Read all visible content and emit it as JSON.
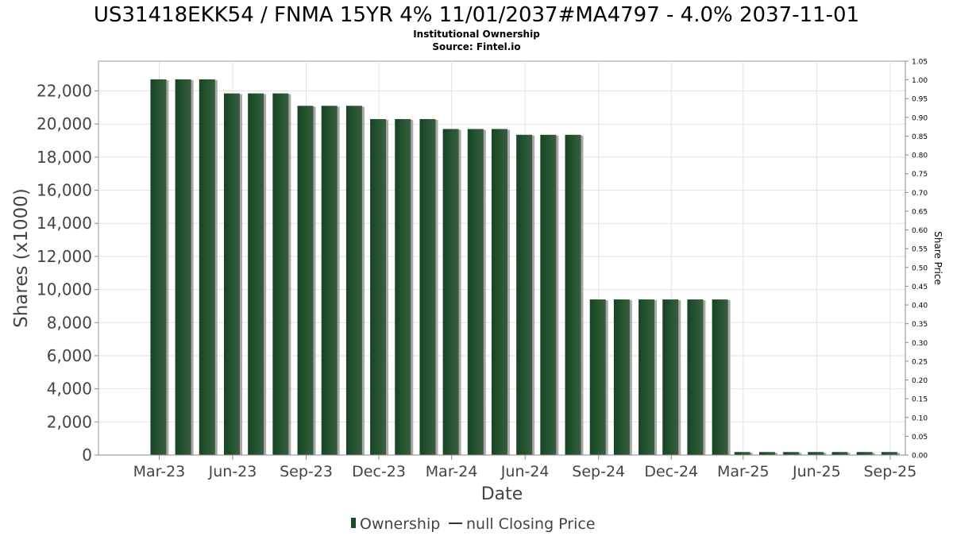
{
  "chart_data": {
    "type": "bar",
    "title": "US31418EKK54 / FNMA 15YR 4% 11/01/2037#MA4797 - 4.0% 2037-11-01",
    "subtitle_lines": [
      "Institutional Ownership",
      "Source: Fintel.io"
    ],
    "xlabel": "Date",
    "ylabel": "Shares (x1000)",
    "y2label": "Share Price",
    "ylim": [
      0,
      23800
    ],
    "y_ticks": [
      0,
      2000,
      4000,
      6000,
      8000,
      10000,
      12000,
      14000,
      16000,
      18000,
      20000,
      22000
    ],
    "y_tick_labels": [
      "0",
      "2,000",
      "4,000",
      "6,000",
      "8,000",
      "10,000",
      "12,000",
      "14,000",
      "16,000",
      "18,000",
      "20,000",
      "22,000"
    ],
    "y2lim": [
      0,
      1.05
    ],
    "y2_ticks": [
      0,
      0.05,
      0.1,
      0.15,
      0.2,
      0.25,
      0.3,
      0.35,
      0.4,
      0.45,
      0.5,
      0.55,
      0.6,
      0.65,
      0.7,
      0.75,
      0.8,
      0.85,
      0.9,
      0.95,
      1.0,
      1.05
    ],
    "y2_tick_labels": [
      "0.00",
      "0.05",
      "0.10",
      "0.15",
      "0.20",
      "0.25",
      "0.30",
      "0.35",
      "0.40",
      "0.45",
      "0.50",
      "0.55",
      "0.60",
      "0.65",
      "0.70",
      "0.75",
      "0.80",
      "0.85",
      "0.90",
      "0.95",
      "1.00",
      "1.05"
    ],
    "x_range": [
      "2022-12-15",
      "2025-09-20"
    ],
    "x_ticks": [
      "2023-03-01",
      "2023-06-01",
      "2023-09-01",
      "2023-12-01",
      "2024-03-01",
      "2024-06-01",
      "2024-09-01",
      "2024-12-01",
      "2025-03-01",
      "2025-06-01",
      "2025-09-01"
    ],
    "x_tick_labels": [
      "Mar-23",
      "Jun-23",
      "Sep-23",
      "Dec-23",
      "Mar-24",
      "Jun-24",
      "Sep-24",
      "Dec-24",
      "Mar-25",
      "Jun-25",
      "Sep-25"
    ],
    "series": [
      {
        "name": "Ownership",
        "color": "#1e4a2a",
        "x": [
          "2023-02-28",
          "2023-03-31",
          "2023-04-30",
          "2023-05-31",
          "2023-06-30",
          "2023-07-31",
          "2023-08-31",
          "2023-09-30",
          "2023-10-31",
          "2023-11-30",
          "2023-12-31",
          "2024-01-31",
          "2024-02-29",
          "2024-03-31",
          "2024-04-30",
          "2024-05-31",
          "2024-06-30",
          "2024-07-31",
          "2024-08-31",
          "2024-09-30",
          "2024-10-31",
          "2024-11-30",
          "2024-12-31",
          "2025-01-31",
          "2025-02-28",
          "2025-03-31",
          "2025-04-30",
          "2025-05-31",
          "2025-06-30",
          "2025-07-31",
          "2025-08-31"
        ],
        "values": [
          22700,
          22700,
          22700,
          21850,
          21850,
          21850,
          21100,
          21100,
          21100,
          20300,
          20300,
          20300,
          19700,
          19700,
          19700,
          19350,
          19350,
          19350,
          9400,
          9400,
          9400,
          9400,
          9400,
          9400,
          180,
          180,
          180,
          180,
          180,
          180,
          180
        ]
      },
      {
        "name": "null Closing Price",
        "color": "#333333",
        "values": []
      }
    ],
    "grid": true,
    "legend_position": "bottom-center"
  },
  "legend": {
    "ownership_label": "Ownership",
    "price_label": "null Closing Price"
  }
}
